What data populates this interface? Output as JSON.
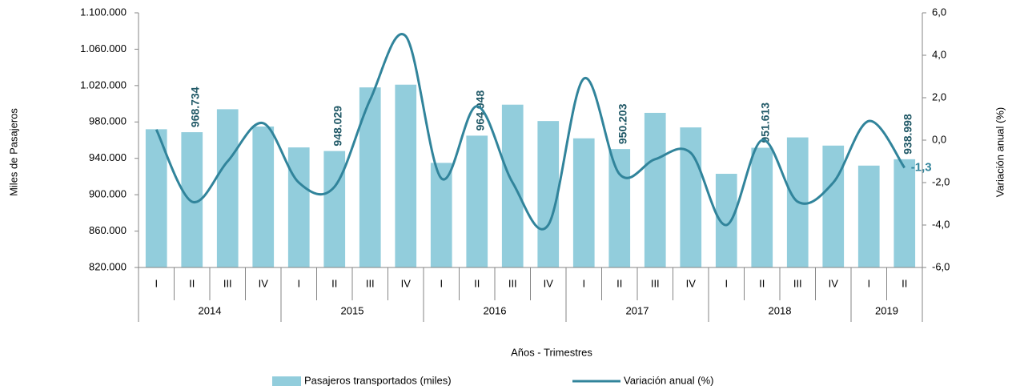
{
  "chart_data": {
    "type": "bar_line",
    "x_label": "Años - Trimestres",
    "y_label": "Miles de Pasajeros",
    "y2_label": "Variación anual (%)",
    "categories": [
      "I",
      "II",
      "III",
      "IV",
      "I",
      "II",
      "III",
      "IV",
      "I",
      "II",
      "III",
      "IV",
      "I",
      "II",
      "III",
      "IV",
      "I",
      "II",
      "III",
      "IV",
      "I",
      "II"
    ],
    "groups": [
      "2014",
      "2015",
      "2016",
      "2017",
      "2018",
      "2019"
    ],
    "ylim": [
      820000,
      1100000
    ],
    "yticks": [
      {
        "value": 820000,
        "label": "820.000"
      },
      {
        "value": 860000,
        "label": "860.000"
      },
      {
        "value": 900000,
        "label": "900.000"
      },
      {
        "value": 940000,
        "label": "940.000"
      },
      {
        "value": 980000,
        "label": "980.000"
      },
      {
        "value": 1020000,
        "label": "1.020.000"
      },
      {
        "value": 1060000,
        "label": "1.060.000"
      },
      {
        "value": 1100000,
        "label": "1.100.000"
      }
    ],
    "y2lim": [
      -6,
      6
    ],
    "y2ticks": [
      {
        "value": -6,
        "label": "-6,0"
      },
      {
        "value": -4,
        "label": "-4,0"
      },
      {
        "value": -2,
        "label": "-2,0"
      },
      {
        "value": 0,
        "label": "0,0"
      },
      {
        "value": 2,
        "label": "2,0"
      },
      {
        "value": 4,
        "label": "4,0"
      },
      {
        "value": 6,
        "label": "6,0"
      }
    ],
    "series": [
      {
        "name": "Pasajeros transportados (miles)",
        "kind": "bar",
        "color": "#92cddc",
        "values": [
          972000,
          968734,
          994000,
          975000,
          952000,
          948029,
          1018000,
          1021000,
          935000,
          964948,
          999000,
          981000,
          962000,
          950203,
          990000,
          974000,
          923000,
          951613,
          963000,
          954000,
          932000,
          938998
        ],
        "value_labels": [
          null,
          "968.734",
          null,
          null,
          null,
          "948.029",
          null,
          null,
          null,
          "964.948",
          null,
          null,
          null,
          "950.203",
          null,
          null,
          null,
          "951.613",
          null,
          null,
          null,
          "938.998"
        ]
      },
      {
        "name": "Variación anual (%)",
        "kind": "line",
        "axis": "y2",
        "color": "#31849b",
        "values": [
          0.5,
          -2.9,
          -1.0,
          0.8,
          -2.0,
          -2.2,
          1.9,
          4.9,
          -1.8,
          1.6,
          -2.0,
          -4.0,
          2.9,
          -1.6,
          -0.9,
          -0.6,
          -4.0,
          0.0,
          -2.9,
          -2.0,
          0.9,
          -1.3
        ],
        "value_labels": [
          null,
          null,
          null,
          null,
          null,
          null,
          null,
          null,
          null,
          null,
          null,
          null,
          null,
          null,
          null,
          null,
          null,
          null,
          null,
          null,
          null,
          "-1,3"
        ]
      }
    ]
  }
}
